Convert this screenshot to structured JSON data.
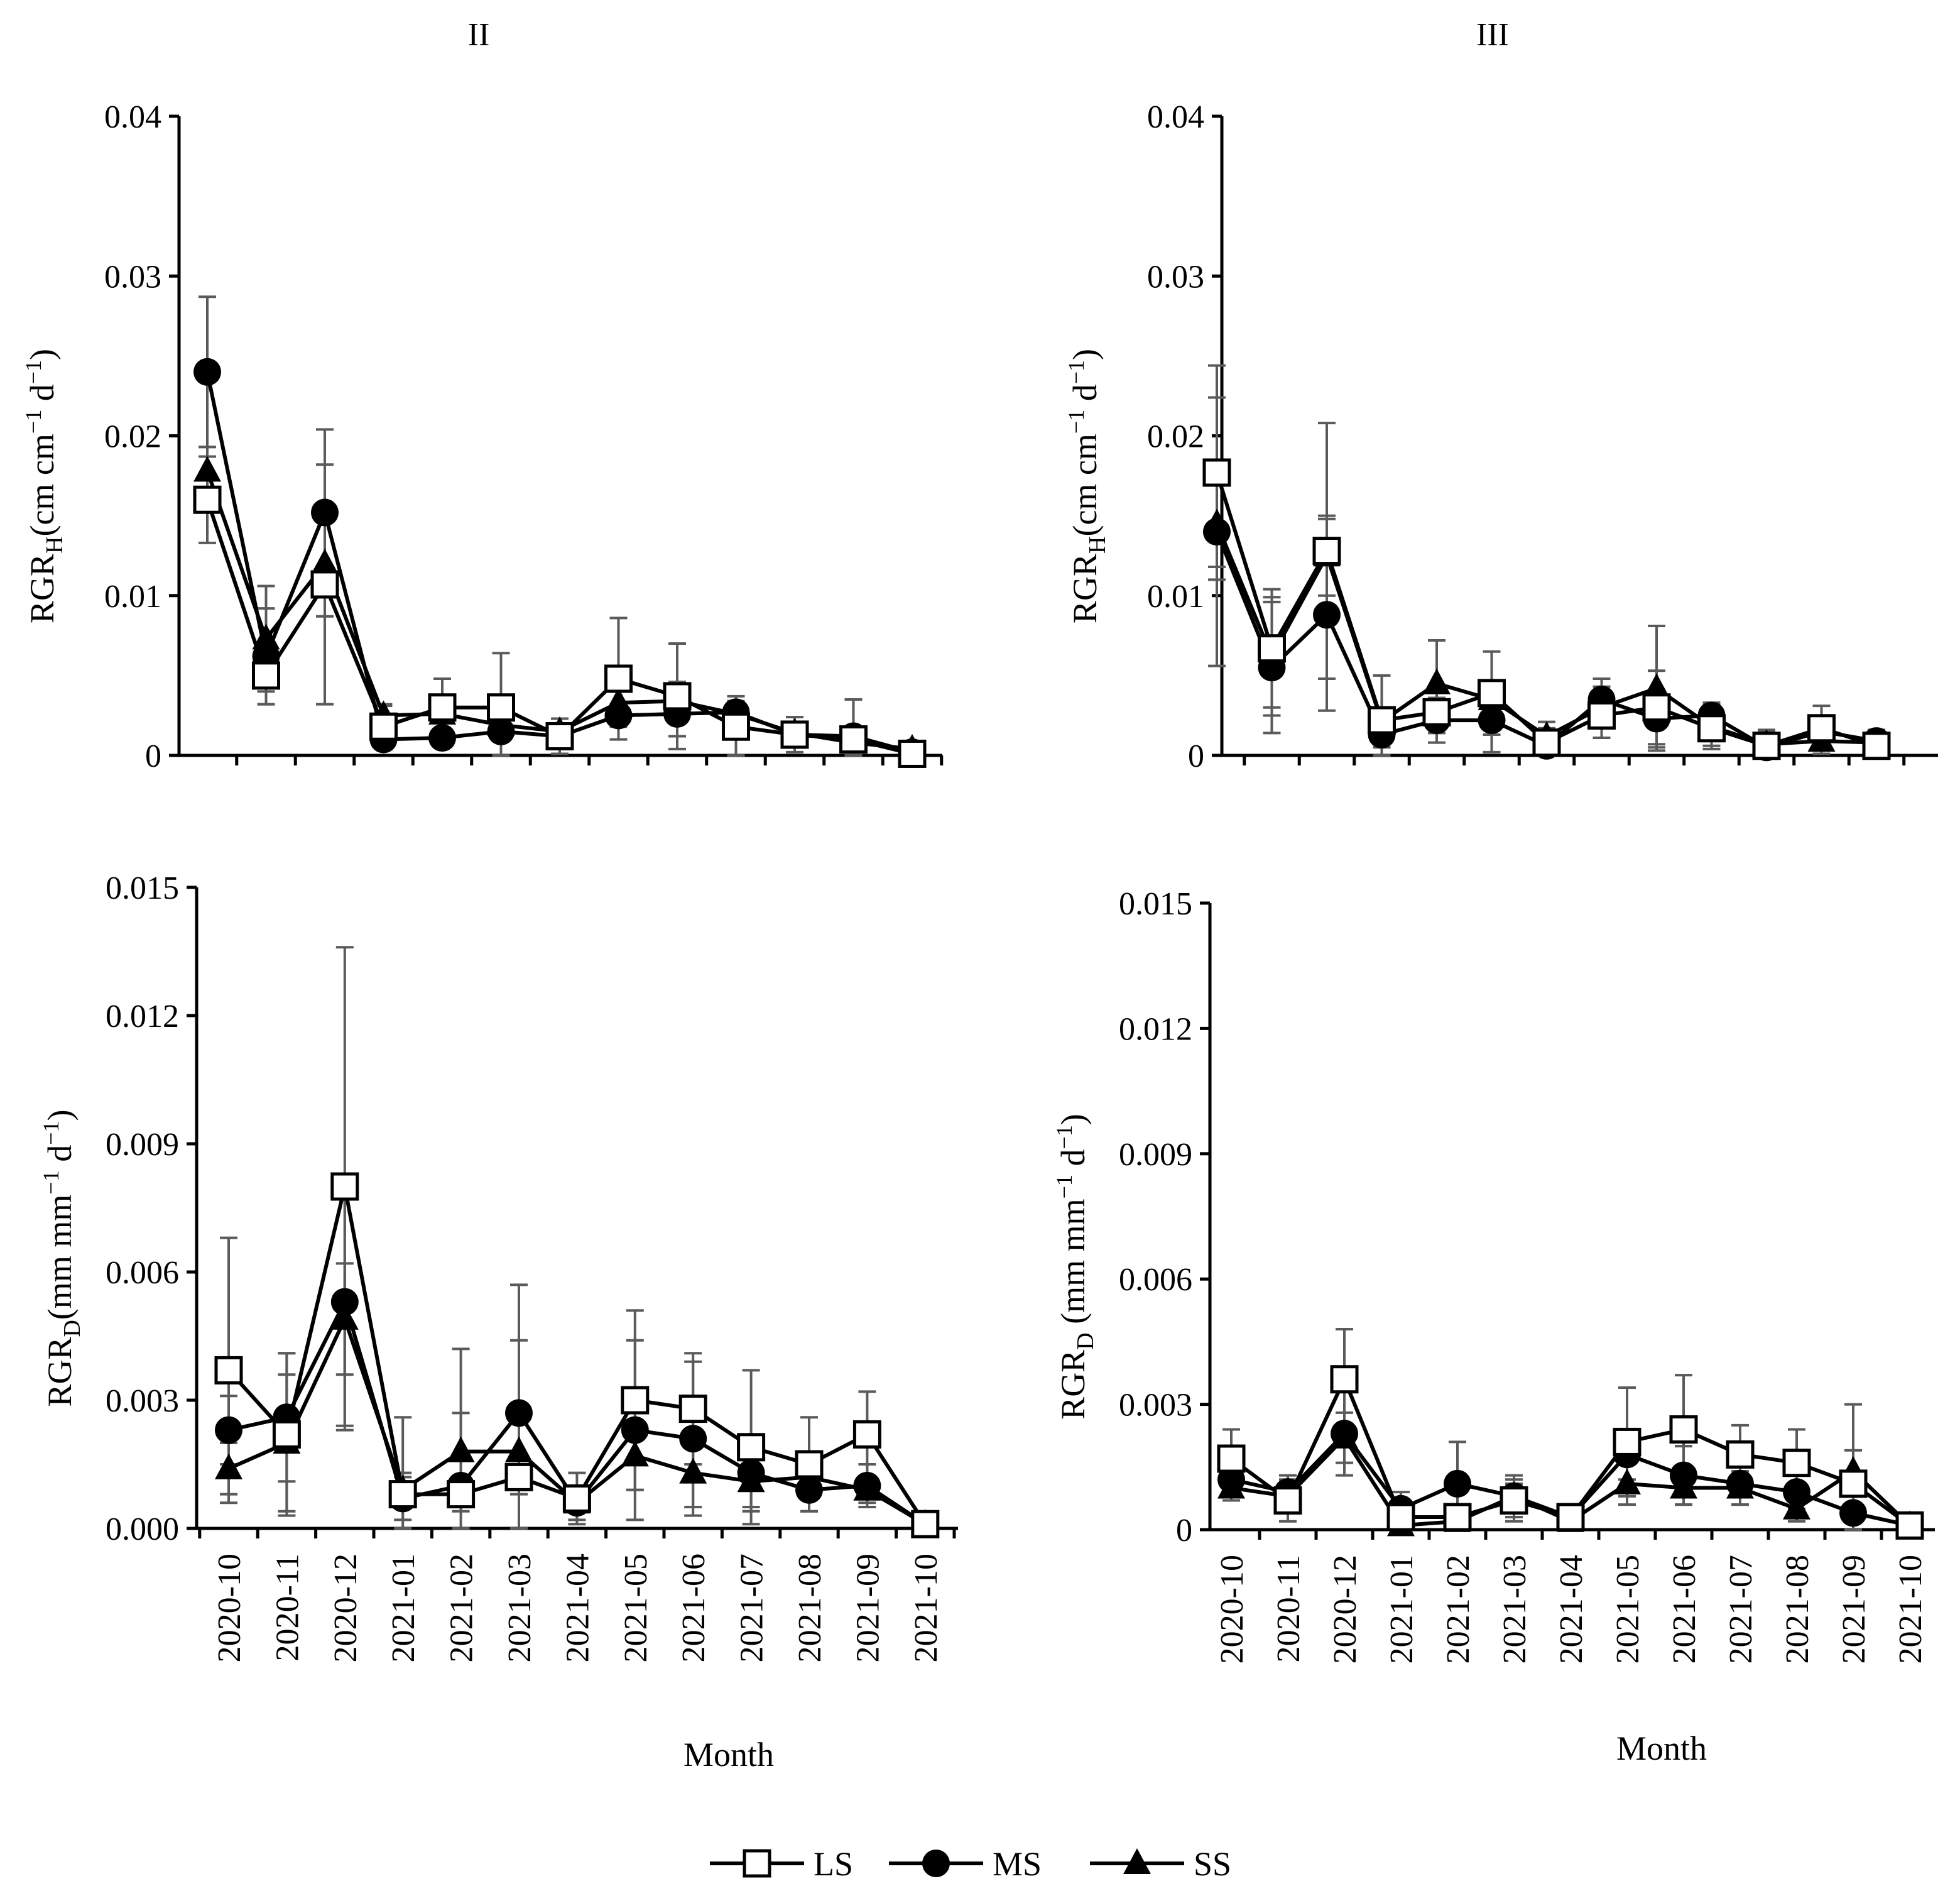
{
  "figure": {
    "legend": {
      "entries": [
        {
          "key": "LS",
          "label": "LS",
          "marker": "open-square"
        },
        {
          "key": "MS",
          "label": "MS",
          "marker": "filled-circle"
        },
        {
          "key": "SS",
          "label": "SS",
          "marker": "filled-triangle"
        }
      ]
    },
    "colors": {
      "line": "#000000",
      "marker_fill": "#000000",
      "error_bar": "#5a5a5a",
      "background": "#ffffff"
    }
  },
  "chart_data": [
    {
      "id": "II-height",
      "type": "line",
      "title": "II",
      "xlabel": "",
      "ylabel": {
        "base": "RGR",
        "sub": "H",
        "rest": "(cm cm",
        "sup1": "−1",
        "mid": " d",
        "sup2": "−1",
        "end": ")"
      },
      "ylim": [
        0,
        0.04
      ],
      "yticks": [
        "0",
        "0.01",
        "0.02",
        "0.03",
        "0.04"
      ],
      "ytick_values": [
        0,
        0.01,
        0.02,
        0.03,
        0.04
      ],
      "categories": [
        "2020-10",
        "2020-11",
        "2020-12",
        "2021-01",
        "2021-02",
        "2021-03",
        "2021-04",
        "2021-05",
        "2021-06",
        "2021-07",
        "2021-08",
        "2021-09",
        "2021-10"
      ],
      "show_category_labels": false,
      "series": [
        {
          "name": "LS",
          "values": [
            0.016,
            0.005,
            0.0107,
            0.0018,
            0.003,
            0.003,
            0.0012,
            0.0048,
            0.0037,
            0.0018,
            0.0013,
            0.001,
            0.0001
          ],
          "errors": [
            0.0027,
            0.0018,
            0.0075,
            0.0013,
            0.0018,
            0.0034,
            0.0011,
            0.0038,
            0.0033,
            0.0019,
            0.0011,
            0.0005,
            0.0003
          ]
        },
        {
          "name": "MS",
          "values": [
            0.024,
            0.0062,
            0.0152,
            0.001,
            0.0011,
            0.0015,
            0.0012,
            0.0025,
            0.0026,
            0.0027,
            0.0013,
            0.0012,
            0.0002
          ],
          "errors": [
            0.0047,
            0.003,
            0.0052,
            0.0004,
            0.0005,
            0.0005,
            0.0007,
            0.0007,
            0.0014,
            0.0007,
            0.0007,
            0.0023,
            0.0006
          ]
        },
        {
          "name": "SS",
          "values": [
            0.0178,
            0.0073,
            0.012,
            0.0025,
            0.0026,
            0.0019,
            0.0015,
            0.0033,
            0.0034,
            0.0026,
            0.0014,
            0.0008,
            0.0004
          ],
          "errors": [
            0.0015,
            0.0033,
            0.0033,
            0.0007,
            0.0009,
            0.0007,
            0.0003,
            0.0011,
            0.0012,
            0.0006,
            0.0003,
            0.0003,
            0.0002
          ]
        }
      ]
    },
    {
      "id": "III-height",
      "type": "line",
      "title": "III",
      "xlabel": "",
      "ylabel": {
        "base": "RGR",
        "sub": "H",
        "rest": "(cm cm",
        "sup1": "−1",
        "mid": " d",
        "sup2": "−1",
        "end": ")"
      },
      "ylim": [
        0,
        0.04
      ],
      "yticks": [
        "0",
        "0.01",
        "0.02",
        "0.03",
        "0.04"
      ],
      "ytick_values": [
        0,
        0.01,
        0.02,
        0.03,
        0.04
      ],
      "categories": [
        "2020-10",
        "2020-11",
        "2020-12",
        "2021-01",
        "2021-02",
        "2021-03",
        "2021-04",
        "2021-05",
        "2021-06",
        "2021-07",
        "2021-08",
        "2021-09",
        "2021-10"
      ],
      "show_category_labels": false,
      "series": [
        {
          "name": "LS",
          "values": [
            0.0177,
            0.0067,
            0.0128,
            0.0022,
            0.0027,
            0.0039,
            0.0008,
            0.0025,
            0.003,
            0.0017,
            0.0006,
            0.0017,
            0.0006
          ],
          "errors": [
            0.0067,
            0.0037,
            0.008,
            0.0028,
            0.0013,
            0.0026,
            0.0009,
            0.0014,
            0.0023,
            0.0011,
            0.0009,
            0.0014,
            0.0004
          ]
        },
        {
          "name": "MS",
          "values": [
            0.014,
            0.0055,
            0.0088,
            0.0013,
            0.0022,
            0.0022,
            0.0006,
            0.0035,
            0.0023,
            0.0025,
            0.0005,
            0.0015,
            0.0009
          ],
          "errors": [
            0.0084,
            0.0041,
            0.006,
            0.0008,
            0.0014,
            0.002,
            0.0004,
            0.0013,
            0.0018,
            0.0008,
            0.0004,
            0.0008,
            0.0007
          ]
        },
        {
          "name": "SS",
          "values": [
            0.0145,
            0.0062,
            0.0125,
            0.0021,
            0.0045,
            0.0035,
            0.0012,
            0.003,
            0.0042,
            0.0018,
            0.0007,
            0.0009,
            0.0008
          ],
          "errors": [
            0.0027,
            0.0037,
            0.0025,
            0.0008,
            0.0027,
            0.0009,
            0.0009,
            0.0013,
            0.0039,
            0.0014,
            0.0009,
            0.0008,
            0.0005
          ]
        }
      ]
    },
    {
      "id": "II-diameter",
      "type": "line",
      "title": "",
      "xlabel": "Month",
      "ylabel": {
        "base": "RGR",
        "sub": "D",
        "rest": "(mm mm",
        "sup1": "−1",
        "mid": " d",
        "sup2": "−1",
        "end": ")"
      },
      "ylim": [
        0,
        0.015
      ],
      "yticks": [
        "0.000",
        "0.003",
        "0.006",
        "0.009",
        "0.012",
        "0.015"
      ],
      "ytick_values": [
        0,
        0.003,
        0.006,
        0.009,
        0.012,
        0.015
      ],
      "categories": [
        "2020-10",
        "2020-11",
        "2020-12",
        "2021-01",
        "2021-02",
        "2021-03",
        "2021-04",
        "2021-05",
        "2021-06",
        "2021-07",
        "2021-08",
        "2021-09",
        "2021-10"
      ],
      "show_category_labels": true,
      "series": [
        {
          "name": "LS",
          "values": [
            0.0037,
            0.0022,
            0.008,
            0.0008,
            0.0008,
            0.0012,
            0.0007,
            0.003,
            0.0028,
            0.0019,
            0.0015,
            0.0022,
            0.0001
          ],
          "errors": [
            0.0031,
            0.0019,
            0.0056,
            0.0018,
            0.0034,
            0.0045,
            0.0006,
            0.0021,
            0.0013,
            0.0018,
            0.0011,
            0.001,
            0.0001
          ]
        },
        {
          "name": "MS",
          "values": [
            0.0023,
            0.0026,
            0.0053,
            0.0007,
            0.001,
            0.0027,
            0.0006,
            0.0023,
            0.0021,
            0.0013,
            0.0009,
            0.001,
            0.0001
          ],
          "errors": [
            0.0008,
            0.0015,
            0.003,
            0.0005,
            0.0006,
            0.0017,
            0.0004,
            0.0021,
            0.0018,
            0.0009,
            0.0005,
            0.0005,
            0.0001
          ]
        },
        {
          "name": "SS",
          "values": [
            0.0014,
            0.002,
            0.0049,
            0.0009,
            0.0018,
            0.0018,
            0.0006,
            0.0017,
            0.0013,
            0.0011,
            0.0012,
            0.0009,
            0.0001
          ],
          "errors": [
            0.0006,
            0.0016,
            0.0013,
            0.0004,
            0.0009,
            0.001,
            0.0002,
            0.0008,
            0.0008,
            0.0006,
            0.0004,
            0.0003,
            0.0001
          ]
        }
      ]
    },
    {
      "id": "III-diameter",
      "type": "line",
      "title": "",
      "xlabel": "Month",
      "ylabel": {
        "base": "RGR",
        "sub": "D",
        "rest": " (mm mm",
        "sup1": "−1",
        "mid": " d",
        "sup2": "−1",
        "end": ")"
      },
      "ylim": [
        0,
        0.015
      ],
      "yticks": [
        "0",
        "0.003",
        "0.006",
        "0.009",
        "0.012",
        "0.015"
      ],
      "ytick_values": [
        0,
        0.003,
        0.006,
        0.009,
        0.012,
        0.015
      ],
      "categories": [
        "2020-10",
        "2020-11",
        "2020-12",
        "2021-01",
        "2021-02",
        "2021-03",
        "2021-04",
        "2021-05",
        "2021-06",
        "2021-07",
        "2021-08",
        "2021-09",
        "2021-10"
      ],
      "show_category_labels": true,
      "series": [
        {
          "name": "LS",
          "values": [
            0.0017,
            0.0007,
            0.0036,
            0.0003,
            0.0003,
            0.0007,
            0.0003,
            0.0021,
            0.0024,
            0.0018,
            0.0016,
            0.0011,
            0.0001
          ],
          "errors": [
            0.0007,
            0.0005,
            0.0012,
            0.0004,
            0.0003,
            0.0005,
            0.0002,
            0.0013,
            0.0013,
            0.0007,
            0.0008,
            0.0019,
            0.0001
          ]
        },
        {
          "name": "MS",
          "values": [
            0.0012,
            0.0009,
            0.0023,
            0.0005,
            0.0011,
            0.0008,
            0.0003,
            0.0018,
            0.0013,
            0.0011,
            0.0009,
            0.0004,
            0.0001
          ],
          "errors": [
            0.0004,
            0.0004,
            0.001,
            0.0004,
            0.001,
            0.0005,
            0.0002,
            0.0006,
            0.0007,
            0.0005,
            0.0004,
            0.0002,
            0.0001
          ]
        },
        {
          "name": "SS",
          "values": [
            0.001,
            0.0008,
            0.0022,
            0.0001,
            0.0002,
            0.0008,
            0.0002,
            0.0011,
            0.001,
            0.001,
            0.0005,
            0.0014,
            0.0001
          ],
          "errors": [
            0.0003,
            0.0003,
            0.0006,
            0.0001,
            0.0002,
            0.0003,
            0.0001,
            0.0005,
            0.0004,
            0.0004,
            0.0003,
            0.0005,
            0.0001
          ]
        }
      ]
    }
  ]
}
